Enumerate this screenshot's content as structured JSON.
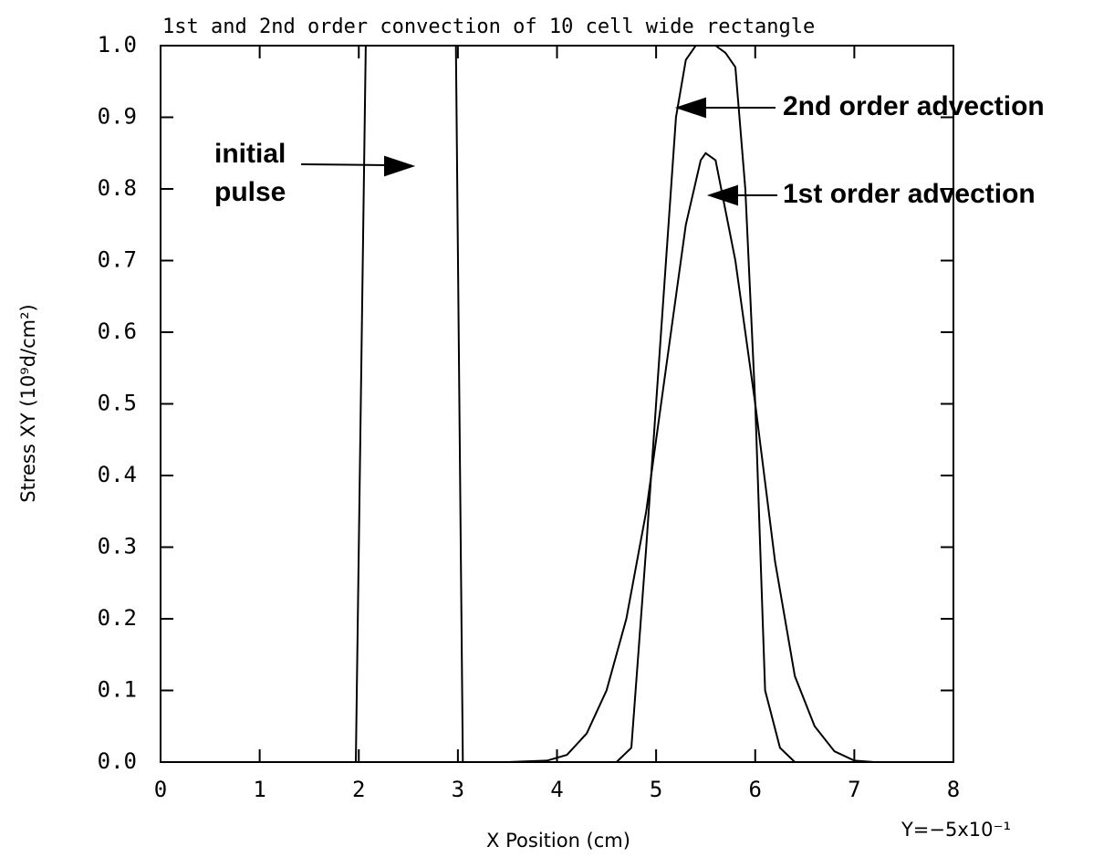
{
  "chart_data": {
    "type": "line",
    "title": "1st and 2nd order convection of 10 cell wide rectangle",
    "x_label": "X Position (cm)",
    "y_label": "Stress XY (10⁹d/cm²)",
    "note": "Y=−5x10⁻¹",
    "annotations": [
      "initial",
      "pulse",
      "2nd order advection",
      "1st order advection"
    ],
    "xlim": [
      0,
      8
    ],
    "xticks": [
      0,
      1,
      2,
      3,
      4,
      5,
      6,
      7,
      8
    ],
    "ylim": [
      0,
      1
    ],
    "yticks": [
      {
        "value": 0,
        "label": "0.0"
      },
      {
        "value": 0.1,
        "label": "0.1"
      },
      {
        "value": 0.2,
        "label": "0.2"
      },
      {
        "value": 0.3,
        "label": "0.3"
      },
      {
        "value": 0.4,
        "label": "0.4"
      },
      {
        "value": 0.5,
        "label": "0.5"
      },
      {
        "value": 0.6,
        "label": "0.6"
      },
      {
        "value": 0.7,
        "label": "0.7"
      },
      {
        "value": 0.8,
        "label": "0.8"
      },
      {
        "value": 0.9,
        "label": "0.9"
      },
      {
        "value": 1,
        "label": "1.0"
      }
    ],
    "grid": false,
    "series": [
      {
        "color": "#000000",
        "x": [
          0,
          1.97,
          2.07,
          2.98,
          3.05,
          8
        ],
        "values": [
          0,
          0,
          1,
          1,
          0,
          0
        ]
      },
      {
        "color": "#000000",
        "x": [
          4.6,
          4.75,
          4.9,
          5.0,
          5.1,
          5.2,
          5.3,
          5.4,
          5.5,
          5.6,
          5.7,
          5.8,
          5.9,
          6.0,
          6.1,
          6.25,
          6.4
        ],
        "values": [
          0,
          0.02,
          0.3,
          0.5,
          0.7,
          0.9,
          0.98,
          1.0,
          1.0,
          1.0,
          0.99,
          0.97,
          0.8,
          0.5,
          0.1,
          0.02,
          0
        ]
      },
      {
        "color": "#000000",
        "x": [
          3.5,
          3.9,
          4.1,
          4.3,
          4.5,
          4.7,
          4.9,
          5.1,
          5.3,
          5.45,
          5.5,
          5.6,
          5.8,
          6.0,
          6.2,
          6.4,
          6.6,
          6.8,
          7.0,
          7.2
        ],
        "values": [
          0,
          0.002,
          0.01,
          0.04,
          0.1,
          0.2,
          0.35,
          0.55,
          0.75,
          0.84,
          0.85,
          0.84,
          0.7,
          0.5,
          0.28,
          0.12,
          0.05,
          0.015,
          0.002,
          0
        ]
      }
    ]
  }
}
